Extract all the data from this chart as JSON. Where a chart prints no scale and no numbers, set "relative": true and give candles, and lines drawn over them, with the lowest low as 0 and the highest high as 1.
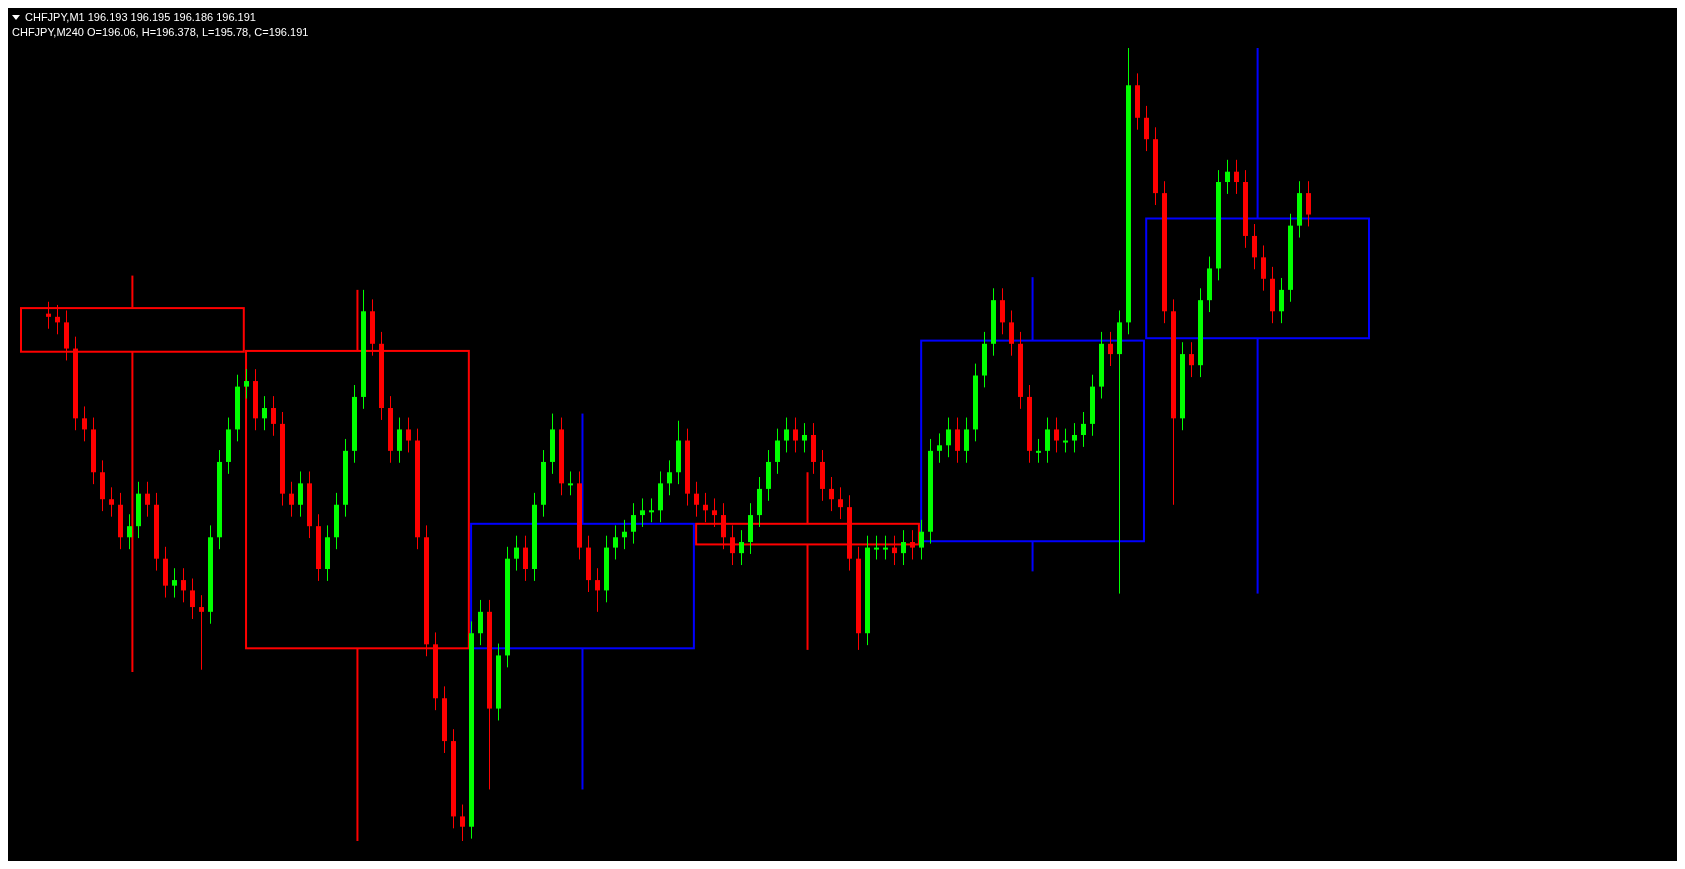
{
  "chart_data": [
    {
      "type": "candlestick",
      "title": "CHFJPY,M240 O=196.06, H=196.378, L=195.78, C=196.191",
      "relative": true,
      "categories": [
        null,
        null,
        null,
        null,
        null,
        null
      ],
      "ohlc": [
        [
          0.672,
          0.713,
          0.213,
          0.617
        ],
        [
          0.618,
          0.695,
          0,
          0.243
        ],
        [
          0.243,
          0.539,
          0.065,
          0.4
        ],
        [
          0.4,
          0.465,
          0.241,
          0.374
        ],
        [
          0.378,
          0.711,
          0.34,
          0.631
        ],
        [
          0.634,
          1,
          0.312,
          0.785
        ]
      ],
      "colors": [
        "#ff0000",
        "#ff0000",
        "#0000ff",
        "#ff0000",
        "#0000ff",
        "#0000ff"
      ]
    },
    {
      "type": "candlestick",
      "title": "CHFJPY,M1 196.193 196.195 196.186 196.191",
      "relative": true,
      "categories": [
        null,
        null,
        null,
        null,
        null,
        null,
        null,
        null,
        null,
        null,
        null,
        null,
        null,
        null,
        null,
        null,
        null,
        null,
        null,
        null,
        null,
        null,
        null,
        null,
        null,
        null,
        null,
        null,
        null,
        null,
        null,
        null,
        null,
        null,
        null,
        null,
        null,
        null,
        null,
        null,
        null,
        null,
        null,
        null,
        null,
        null,
        null,
        null,
        null,
        null,
        null,
        null,
        null,
        null,
        null,
        null,
        null,
        null,
        null,
        null,
        null,
        null,
        null,
        null,
        null,
        null,
        null,
        null,
        null,
        null,
        null,
        null,
        null,
        null,
        null,
        null,
        null,
        null,
        null,
        null,
        null,
        null,
        null,
        null,
        null,
        null,
        null,
        null,
        null,
        null,
        null,
        null,
        null,
        null,
        null,
        null,
        null,
        null,
        null,
        null,
        null,
        null,
        null,
        null,
        null,
        null,
        null,
        null,
        null,
        null,
        null,
        null,
        null,
        null,
        null,
        null,
        null,
        null,
        null,
        null,
        null,
        null,
        null,
        null,
        null,
        null,
        null,
        null,
        null,
        null,
        null,
        null,
        null,
        null,
        null,
        null,
        null,
        null,
        null,
        null,
        null
      ],
      "ohlc": [
        [
          0.665,
          0.68,
          0.646,
          0.661
        ],
        [
          0.661,
          0.676,
          0.639,
          0.654
        ],
        [
          0.654,
          0.669,
          0.606,
          0.621
        ],
        [
          0.621,
          0.636,
          0.518,
          0.533
        ],
        [
          0.533,
          0.548,
          0.504,
          0.519
        ],
        [
          0.519,
          0.534,
          0.45,
          0.465
        ],
        [
          0.465,
          0.48,
          0.416,
          0.431
        ],
        [
          0.431,
          0.446,
          0.409,
          0.424
        ],
        [
          0.424,
          0.439,
          0.368,
          0.383
        ],
        [
          0.383,
          0.412,
          0.368,
          0.397
        ],
        [
          0.397,
          0.453,
          0.382,
          0.438
        ],
        [
          0.438,
          0.453,
          0.409,
          0.424
        ],
        [
          0.424,
          0.439,
          0.341,
          0.356
        ],
        [
          0.356,
          0.371,
          0.307,
          0.322
        ],
        [
          0.322,
          0.344,
          0.307,
          0.329
        ],
        [
          0.329,
          0.344,
          0.301,
          0.316
        ],
        [
          0.316,
          0.331,
          0.28,
          0.295
        ],
        [
          0.295,
          0.31,
          0.216,
          0.289
        ],
        [
          0.289,
          0.398,
          0.274,
          0.383
        ],
        [
          0.383,
          0.493,
          0.368,
          0.478
        ],
        [
          0.478,
          0.534,
          0.463,
          0.519
        ],
        [
          0.519,
          0.588,
          0.504,
          0.573
        ],
        [
          0.573,
          0.595,
          0.558,
          0.58
        ],
        [
          0.58,
          0.595,
          0.518,
          0.533
        ],
        [
          0.533,
          0.561,
          0.518,
          0.546
        ],
        [
          0.546,
          0.561,
          0.511,
          0.526
        ],
        [
          0.526,
          0.541,
          0.423,
          0.438
        ],
        [
          0.438,
          0.453,
          0.409,
          0.424
        ],
        [
          0.424,
          0.466,
          0.409,
          0.451
        ],
        [
          0.451,
          0.466,
          0.382,
          0.397
        ],
        [
          0.397,
          0.412,
          0.328,
          0.343
        ],
        [
          0.343,
          0.398,
          0.328,
          0.383
        ],
        [
          0.383,
          0.439,
          0.368,
          0.424
        ],
        [
          0.424,
          0.507,
          0.409,
          0.492
        ],
        [
          0.492,
          0.575,
          0.477,
          0.56
        ],
        [
          0.56,
          0.695,
          0.545,
          0.668
        ],
        [
          0.668,
          0.683,
          0.612,
          0.627
        ],
        [
          0.627,
          0.642,
          0.531,
          0.546
        ],
        [
          0.546,
          0.561,
          0.477,
          0.492
        ],
        [
          0.492,
          0.534,
          0.477,
          0.519
        ],
        [
          0.519,
          0.534,
          0.49,
          0.505
        ],
        [
          0.505,
          0.52,
          0.368,
          0.383
        ],
        [
          0.383,
          0.398,
          0.233,
          0.248
        ],
        [
          0.248,
          0.263,
          0.165,
          0.18
        ],
        [
          0.18,
          0.195,
          0.111,
          0.126
        ],
        [
          0.126,
          0.141,
          0.016,
          0.031
        ],
        [
          0.031,
          0.046,
          0,
          0.018
        ],
        [
          0.018,
          0.277,
          0.003,
          0.262
        ],
        [
          0.262,
          0.304,
          0.247,
          0.289
        ],
        [
          0.289,
          0.304,
          0.065,
          0.167
        ],
        [
          0.167,
          0.249,
          0.152,
          0.234
        ],
        [
          0.234,
          0.371,
          0.219,
          0.356
        ],
        [
          0.356,
          0.385,
          0.341,
          0.37
        ],
        [
          0.37,
          0.385,
          0.328,
          0.343
        ],
        [
          0.343,
          0.439,
          0.328,
          0.424
        ],
        [
          0.424,
          0.493,
          0.409,
          0.478
        ],
        [
          0.478,
          0.539,
          0.463,
          0.519
        ],
        [
          0.519,
          0.534,
          0.436,
          0.451
        ],
        [
          0.451,
          0.466,
          0.436,
          0.451
        ],
        [
          0.451,
          0.466,
          0.355,
          0.37
        ],
        [
          0.37,
          0.385,
          0.314,
          0.329
        ],
        [
          0.329,
          0.344,
          0.289,
          0.316
        ],
        [
          0.316,
          0.385,
          0.301,
          0.37
        ],
        [
          0.37,
          0.398,
          0.355,
          0.383
        ],
        [
          0.383,
          0.405,
          0.368,
          0.39
        ],
        [
          0.39,
          0.426,
          0.375,
          0.411
        ],
        [
          0.411,
          0.432,
          0.396,
          0.417
        ],
        [
          0.417,
          0.432,
          0.402,
          0.417
        ],
        [
          0.417,
          0.466,
          0.402,
          0.451
        ],
        [
          0.451,
          0.48,
          0.436,
          0.465
        ],
        [
          0.465,
          0.53,
          0.45,
          0.505
        ],
        [
          0.505,
          0.52,
          0.423,
          0.438
        ],
        [
          0.438,
          0.453,
          0.409,
          0.424
        ],
        [
          0.424,
          0.439,
          0.402,
          0.417
        ],
        [
          0.417,
          0.432,
          0.396,
          0.411
        ],
        [
          0.411,
          0.426,
          0.368,
          0.383
        ],
        [
          0.383,
          0.398,
          0.348,
          0.363
        ],
        [
          0.363,
          0.392,
          0.348,
          0.377
        ],
        [
          0.377,
          0.426,
          0.362,
          0.411
        ],
        [
          0.411,
          0.459,
          0.396,
          0.444
        ],
        [
          0.444,
          0.493,
          0.429,
          0.478
        ],
        [
          0.478,
          0.52,
          0.463,
          0.505
        ],
        [
          0.505,
          0.534,
          0.49,
          0.519
        ],
        [
          0.519,
          0.534,
          0.49,
          0.505
        ],
        [
          0.505,
          0.527,
          0.49,
          0.512
        ],
        [
          0.512,
          0.527,
          0.463,
          0.478
        ],
        [
          0.478,
          0.493,
          0.429,
          0.444
        ],
        [
          0.444,
          0.459,
          0.416,
          0.431
        ],
        [
          0.431,
          0.446,
          0.406,
          0.421
        ],
        [
          0.421,
          0.436,
          0.341,
          0.356
        ],
        [
          0.356,
          0.371,
          0.241,
          0.262
        ],
        [
          0.262,
          0.385,
          0.247,
          0.37
        ],
        [
          0.37,
          0.385,
          0.355,
          0.37
        ],
        [
          0.37,
          0.385,
          0.355,
          0.37
        ],
        [
          0.37,
          0.385,
          0.348,
          0.363
        ],
        [
          0.363,
          0.392,
          0.348,
          0.377
        ],
        [
          0.377,
          0.392,
          0.355,
          0.37
        ],
        [
          0.37,
          0.405,
          0.355,
          0.39
        ],
        [
          0.39,
          0.507,
          0.375,
          0.492
        ],
        [
          0.492,
          0.514,
          0.477,
          0.499
        ],
        [
          0.499,
          0.534,
          0.484,
          0.519
        ],
        [
          0.519,
          0.534,
          0.477,
          0.492
        ],
        [
          0.492,
          0.534,
          0.477,
          0.519
        ],
        [
          0.519,
          0.602,
          0.504,
          0.587
        ],
        [
          0.587,
          0.642,
          0.572,
          0.627
        ],
        [
          0.627,
          0.697,
          0.612,
          0.682
        ],
        [
          0.682,
          0.697,
          0.639,
          0.654
        ],
        [
          0.654,
          0.669,
          0.612,
          0.627
        ],
        [
          0.627,
          0.642,
          0.545,
          0.56
        ],
        [
          0.56,
          0.575,
          0.477,
          0.492
        ],
        [
          0.492,
          0.507,
          0.477,
          0.492
        ],
        [
          0.492,
          0.534,
          0.477,
          0.519
        ],
        [
          0.519,
          0.534,
          0.49,
          0.505
        ],
        [
          0.505,
          0.52,
          0.49,
          0.505
        ],
        [
          0.505,
          0.527,
          0.49,
          0.512
        ],
        [
          0.512,
          0.541,
          0.497,
          0.526
        ],
        [
          0.526,
          0.588,
          0.511,
          0.573
        ],
        [
          0.573,
          0.642,
          0.558,
          0.627
        ],
        [
          0.627,
          0.642,
          0.599,
          0.614
        ],
        [
          0.614,
          0.669,
          0.312,
          0.654
        ],
        [
          0.654,
          1,
          0.639,
          0.953
        ],
        [
          0.953,
          0.968,
          0.897,
          0.912
        ],
        [
          0.912,
          0.927,
          0.87,
          0.885
        ],
        [
          0.885,
          0.9,
          0.802,
          0.817
        ],
        [
          0.817,
          0.832,
          0.653,
          0.668
        ],
        [
          0.668,
          0.683,
          0.424,
          0.533
        ],
        [
          0.533,
          0.629,
          0.518,
          0.614
        ],
        [
          0.614,
          0.629,
          0.585,
          0.6
        ],
        [
          0.6,
          0.697,
          0.585,
          0.682
        ],
        [
          0.682,
          0.737,
          0.667,
          0.722
        ],
        [
          0.722,
          0.846,
          0.707,
          0.831
        ],
        [
          0.831,
          0.859,
          0.816,
          0.844
        ],
        [
          0.844,
          0.859,
          0.816,
          0.831
        ],
        [
          0.831,
          0.846,
          0.748,
          0.763
        ],
        [
          0.763,
          0.778,
          0.721,
          0.736
        ],
        [
          0.736,
          0.751,
          0.694,
          0.709
        ],
        [
          0.709,
          0.724,
          0.653,
          0.668
        ],
        [
          0.668,
          0.71,
          0.653,
          0.695
        ],
        [
          0.695,
          0.791,
          0.68,
          0.776
        ],
        [
          0.776,
          0.832,
          0.761,
          0.817
        ],
        [
          0.817,
          0.832,
          0.775,
          0.79
        ]
      ],
      "colors": [
        "#ff0000",
        "#ff0000",
        "#ff0000",
        "#ff0000",
        "#ff0000",
        "#ff0000",
        "#ff0000",
        "#ff0000",
        "#ff0000",
        "#00ff00",
        "#00ff00",
        "#ff0000",
        "#ff0000",
        "#ff0000",
        "#00ff00",
        "#ff0000",
        "#ff0000",
        "#ff0000",
        "#00ff00",
        "#00ff00",
        "#00ff00",
        "#00ff00",
        "#00ff00",
        "#ff0000",
        "#00ff00",
        "#ff0000",
        "#ff0000",
        "#ff0000",
        "#00ff00",
        "#ff0000",
        "#ff0000",
        "#00ff00",
        "#00ff00",
        "#00ff00",
        "#00ff00",
        "#00ff00",
        "#ff0000",
        "#ff0000",
        "#ff0000",
        "#00ff00",
        "#ff0000",
        "#ff0000",
        "#ff0000",
        "#ff0000",
        "#ff0000",
        "#ff0000",
        "#ff0000",
        "#00ff00",
        "#00ff00",
        "#ff0000",
        "#00ff00",
        "#00ff00",
        "#00ff00",
        "#ff0000",
        "#00ff00",
        "#00ff00",
        "#00ff00",
        "#ff0000",
        "#00ff00",
        "#ff0000",
        "#ff0000",
        "#ff0000",
        "#00ff00",
        "#00ff00",
        "#00ff00",
        "#00ff00",
        "#00ff00",
        "#00ff00",
        "#00ff00",
        "#00ff00",
        "#00ff00",
        "#ff0000",
        "#ff0000",
        "#ff0000",
        "#ff0000",
        "#ff0000",
        "#ff0000",
        "#00ff00",
        "#00ff00",
        "#00ff00",
        "#00ff00",
        "#00ff00",
        "#00ff00",
        "#ff0000",
        "#00ff00",
        "#ff0000",
        "#ff0000",
        "#ff0000",
        "#ff0000",
        "#ff0000",
        "#ff0000",
        "#00ff00",
        "#00ff00",
        "#00ff00",
        "#ff0000",
        "#00ff00",
        "#ff0000",
        "#00ff00",
        "#00ff00",
        "#00ff00",
        "#00ff00",
        "#ff0000",
        "#00ff00",
        "#00ff00",
        "#00ff00",
        "#00ff00",
        "#ff0000",
        "#ff0000",
        "#ff0000",
        "#ff0000",
        "#00ff00",
        "#00ff00",
        "#ff0000",
        "#00ff00",
        "#00ff00",
        "#00ff00",
        "#00ff00",
        "#00ff00",
        "#ff0000",
        "#00ff00",
        "#00ff00",
        "#ff0000",
        "#ff0000",
        "#ff0000",
        "#ff0000",
        "#ff0000",
        "#00ff00",
        "#ff0000",
        "#00ff00",
        "#00ff00",
        "#00ff00",
        "#00ff00",
        "#ff0000",
        "#ff0000",
        "#ff0000",
        "#ff0000",
        "#ff0000",
        "#00ff00",
        "#00ff00",
        "#00ff00",
        "#ff0000"
      ]
    }
  ]
}
